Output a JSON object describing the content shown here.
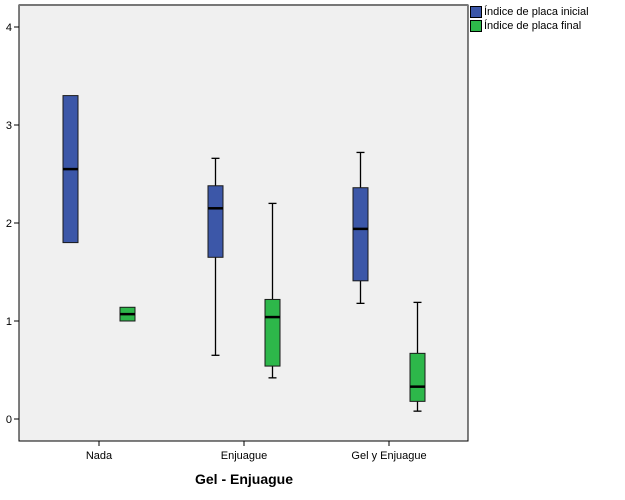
{
  "chart_data": {
    "type": "box",
    "title": "",
    "xlabel": "Gel - Enjuague",
    "ylabel": "",
    "ylim": [
      0,
      4
    ],
    "yticks": [
      0,
      1,
      2,
      3,
      4
    ],
    "grid": false,
    "legend_position": "top-right outside",
    "categories": [
      "Nada",
      "Enjuague",
      "Gel y Enjuague"
    ],
    "series": [
      {
        "name": "Índice de placa inicial",
        "color": "#3c57a8",
        "boxes": [
          {
            "min": 1.8,
            "q1": 1.8,
            "median": 2.55,
            "q3": 3.3,
            "max": 3.3
          },
          {
            "min": 0.65,
            "q1": 1.65,
            "median": 2.15,
            "q3": 2.38,
            "max": 2.66
          },
          {
            "min": 1.18,
            "q1": 1.41,
            "median": 1.94,
            "q3": 2.36,
            "max": 2.72
          }
        ]
      },
      {
        "name": "Índice de placa final",
        "color": "#2db74a",
        "boxes": [
          {
            "min": 1.0,
            "q1": 1.0,
            "median": 1.07,
            "q3": 1.14,
            "max": 1.14
          },
          {
            "min": 0.42,
            "q1": 0.54,
            "median": 1.04,
            "q3": 1.22,
            "max": 2.2
          },
          {
            "min": 0.08,
            "q1": 0.18,
            "median": 0.33,
            "q3": 0.67,
            "max": 1.19
          }
        ]
      }
    ]
  },
  "legend": {
    "items": [
      {
        "label": "Índice de placa inicial",
        "color": "#3c57a8"
      },
      {
        "label": "Índice de placa final",
        "color": "#2db74a"
      }
    ]
  },
  "axis": {
    "x_title": "Gel - Enjuague",
    "x_ticks": [
      "Nada",
      "Enjuague",
      "Gel y Enjuague"
    ],
    "y_ticks": [
      "0",
      "1",
      "2",
      "3",
      "4"
    ]
  }
}
